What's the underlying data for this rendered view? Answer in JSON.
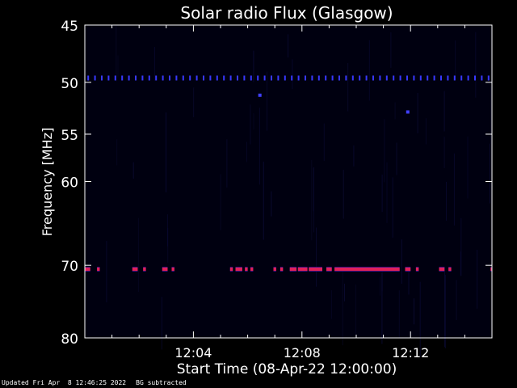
{
  "chart_data": {
    "type": "heatmap",
    "title": "Solar radio Flux (Glasgow)",
    "xlabel": "Start Time (08-Apr-22 12:00:00)",
    "ylabel": "Frequency [MHz]",
    "x_range_minutes": [
      0,
      15
    ],
    "x_ticks": [
      {
        "minute": 4,
        "label": "12:04"
      },
      {
        "minute": 8,
        "label": "12:08"
      },
      {
        "minute": 12,
        "label": "12:12"
      }
    ],
    "ylim": [
      45,
      80
    ],
    "y_axis_inverted": true,
    "y_scale": "log",
    "y_ticks": [
      45,
      50,
      55,
      60,
      70,
      80
    ],
    "y_tick_labels": [
      "45",
      "50",
      "55",
      "60",
      "70",
      "80"
    ],
    "background_color": "#000010",
    "emission_bands": [
      {
        "name": "",
        "freq_mhz": 70.5,
        "color": "#e0205a",
        "segments_minutes": [
          [
            0.0,
            0.2
          ],
          [
            0.45,
            0.55
          ],
          [
            1.75,
            1.95
          ],
          [
            2.15,
            2.25
          ],
          [
            2.85,
            3.05
          ],
          [
            3.2,
            3.3
          ],
          [
            5.35,
            5.45
          ],
          [
            5.55,
            5.8
          ],
          [
            5.9,
            6.0
          ],
          [
            6.1,
            6.2
          ],
          [
            6.95,
            7.05
          ],
          [
            7.2,
            7.3
          ],
          [
            7.55,
            7.8
          ],
          [
            7.85,
            8.2
          ],
          [
            8.25,
            8.75
          ],
          [
            8.9,
            9.1
          ],
          [
            9.2,
            11.6
          ],
          [
            11.8,
            12.0
          ],
          [
            12.2,
            12.3
          ],
          [
            13.05,
            13.25
          ],
          [
            13.4,
            13.5
          ],
          [
            14.95,
            15.0
          ]
        ]
      }
    ],
    "periodic_dots": {
      "freq_mhz": 49.6,
      "interval_minutes": 0.25,
      "color": "#3838ff"
    },
    "isolated_dots": [
      {
        "minute": 6.45,
        "freq_mhz": 51.2,
        "color": "#4040ff"
      },
      {
        "minute": 11.9,
        "freq_mhz": 52.8,
        "color": "#4040ff"
      }
    ]
  },
  "footer": {
    "updated": "Updated Fri Apr  8 12:46:25 2022",
    "note": "BG subtracted"
  }
}
